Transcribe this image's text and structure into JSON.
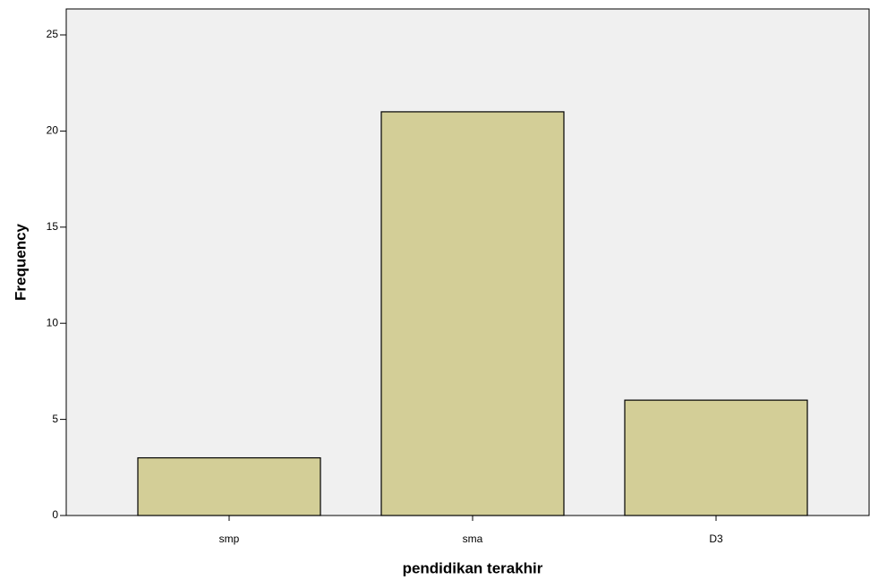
{
  "chart_data": {
    "type": "bar",
    "x_label": "pendidikan terakhir",
    "y_label": "Frequency",
    "categories": [
      "smp",
      "sma",
      "D3"
    ],
    "values": [
      3,
      21,
      6
    ],
    "color": "#d3ce97",
    "ylim": [
      0,
      26.35
    ],
    "yticks": [
      0,
      5,
      10,
      15,
      20,
      25
    ],
    "grid": false
  }
}
